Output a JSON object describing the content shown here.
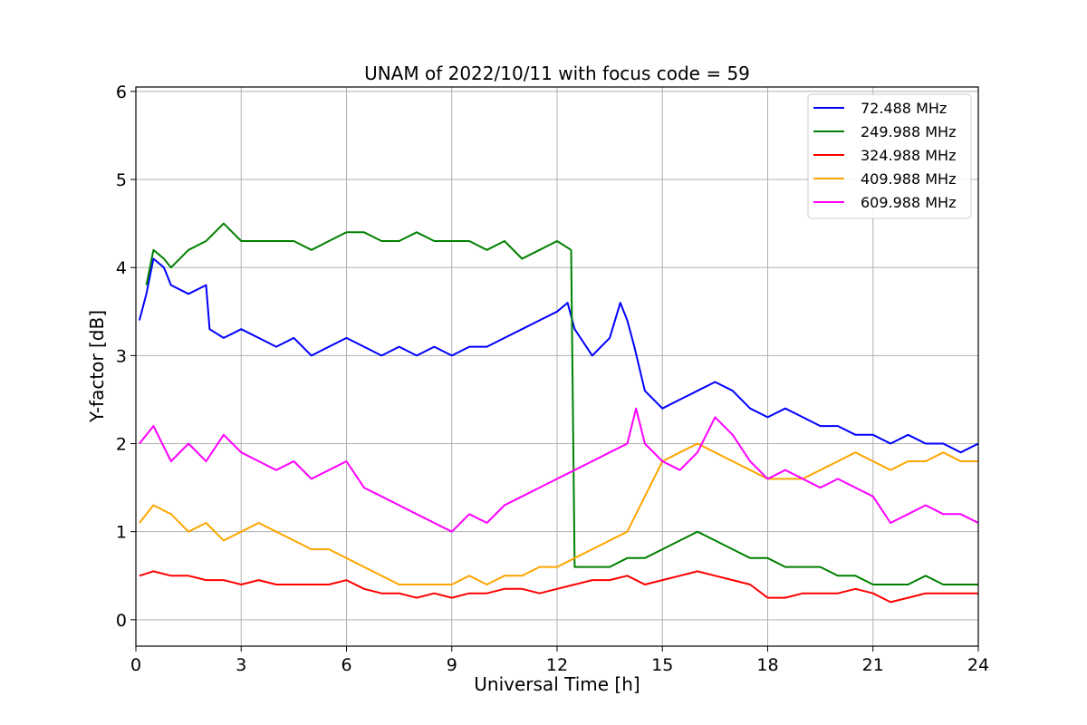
{
  "chart_data": {
    "type": "line",
    "title": "UNAM of 2022/10/11 with focus code = 59",
    "xlabel": "Universal Time [h]",
    "ylabel": "Y-factor [dB]",
    "xlim": [
      0,
      24
    ],
    "ylim": [
      -0.3,
      6.05
    ],
    "xticks": [
      0,
      3,
      6,
      9,
      12,
      15,
      18,
      21,
      24
    ],
    "yticks": [
      0,
      1,
      2,
      3,
      4,
      5,
      6
    ],
    "grid": true,
    "legend_position": "top-right",
    "series": [
      {
        "name": " 72.488 MHz",
        "color": "#0000ff",
        "x": [
          0.1,
          0.3,
          0.5,
          0.8,
          1.0,
          1.5,
          2.0,
          2.1,
          2.5,
          3.0,
          3.5,
          4.0,
          4.5,
          5.0,
          5.5,
          6.0,
          6.5,
          7.0,
          7.5,
          8.0,
          8.5,
          9.0,
          9.5,
          10.0,
          10.5,
          11.0,
          11.5,
          12.0,
          12.3,
          12.5,
          13.0,
          13.5,
          13.8,
          14.0,
          14.2,
          14.5,
          15.0,
          15.5,
          16.0,
          16.5,
          17.0,
          17.5,
          18.0,
          18.5,
          19.0,
          19.5,
          20.0,
          20.5,
          21.0,
          21.5,
          22.0,
          22.5,
          23.0,
          23.5,
          24.0
        ],
        "y": [
          3.4,
          3.7,
          4.1,
          4.0,
          3.8,
          3.7,
          3.8,
          3.3,
          3.2,
          3.3,
          3.2,
          3.1,
          3.2,
          3.0,
          3.1,
          3.2,
          3.1,
          3.0,
          3.1,
          3.0,
          3.1,
          3.0,
          3.1,
          3.1,
          3.2,
          3.3,
          3.4,
          3.5,
          3.6,
          3.3,
          3.0,
          3.2,
          3.6,
          3.4,
          3.1,
          2.6,
          2.4,
          2.5,
          2.6,
          2.7,
          2.6,
          2.4,
          2.3,
          2.4,
          2.3,
          2.2,
          2.2,
          2.1,
          2.1,
          2.0,
          2.1,
          2.0,
          2.0,
          1.9,
          2.0
        ]
      },
      {
        "name": "249.988 MHz",
        "color": "#008000",
        "x": [
          0.3,
          0.5,
          0.8,
          1.0,
          1.5,
          2.0,
          2.5,
          3.0,
          3.5,
          4.0,
          4.5,
          5.0,
          5.5,
          6.0,
          6.5,
          7.0,
          7.5,
          8.0,
          8.5,
          9.0,
          9.5,
          10.0,
          10.5,
          11.0,
          11.5,
          12.0,
          12.4,
          12.5,
          13.0,
          13.5,
          14.0,
          14.5,
          15.0,
          15.5,
          16.0,
          16.5,
          17.0,
          17.5,
          18.0,
          18.5,
          19.0,
          19.5,
          20.0,
          20.5,
          21.0,
          21.5,
          22.0,
          22.5,
          23.0,
          23.5,
          24.0
        ],
        "y": [
          3.8,
          4.2,
          4.1,
          4.0,
          4.2,
          4.3,
          4.5,
          4.3,
          4.3,
          4.3,
          4.3,
          4.2,
          4.3,
          4.4,
          4.4,
          4.3,
          4.3,
          4.4,
          4.3,
          4.3,
          4.3,
          4.2,
          4.3,
          4.1,
          4.2,
          4.3,
          4.2,
          0.6,
          0.6,
          0.6,
          0.7,
          0.7,
          0.8,
          0.9,
          1.0,
          0.9,
          0.8,
          0.7,
          0.7,
          0.6,
          0.6,
          0.6,
          0.5,
          0.5,
          0.4,
          0.4,
          0.4,
          0.5,
          0.4,
          0.4,
          0.4
        ]
      },
      {
        "name": "324.988 MHz",
        "color": "#ff0000",
        "x": [
          0.1,
          0.5,
          1.0,
          1.5,
          2.0,
          2.5,
          3.0,
          3.5,
          4.0,
          4.5,
          5.0,
          5.5,
          6.0,
          6.5,
          7.0,
          7.5,
          8.0,
          8.5,
          9.0,
          9.5,
          10.0,
          10.5,
          11.0,
          11.5,
          12.0,
          12.5,
          13.0,
          13.5,
          14.0,
          14.5,
          15.0,
          15.5,
          16.0,
          16.5,
          17.0,
          17.5,
          18.0,
          18.5,
          19.0,
          19.5,
          20.0,
          20.5,
          21.0,
          21.5,
          22.0,
          22.5,
          23.0,
          23.5,
          24.0
        ],
        "y": [
          0.5,
          0.55,
          0.5,
          0.5,
          0.45,
          0.45,
          0.4,
          0.45,
          0.4,
          0.4,
          0.4,
          0.4,
          0.45,
          0.35,
          0.3,
          0.3,
          0.25,
          0.3,
          0.25,
          0.3,
          0.3,
          0.35,
          0.35,
          0.3,
          0.35,
          0.4,
          0.45,
          0.45,
          0.5,
          0.4,
          0.45,
          0.5,
          0.55,
          0.5,
          0.45,
          0.4,
          0.25,
          0.25,
          0.3,
          0.3,
          0.3,
          0.35,
          0.3,
          0.2,
          0.25,
          0.3,
          0.3,
          0.3,
          0.3
        ]
      },
      {
        "name": "409.988 MHz",
        "color": "#ffa500",
        "x": [
          0.1,
          0.5,
          1.0,
          1.5,
          2.0,
          2.5,
          3.0,
          3.5,
          4.0,
          4.5,
          5.0,
          5.5,
          6.0,
          6.5,
          7.0,
          7.5,
          8.0,
          8.5,
          9.0,
          9.5,
          10.0,
          10.5,
          11.0,
          11.5,
          12.0,
          12.5,
          13.0,
          13.5,
          14.0,
          14.5,
          15.0,
          15.5,
          16.0,
          16.5,
          17.0,
          17.5,
          18.0,
          18.5,
          19.0,
          19.5,
          20.0,
          20.5,
          21.0,
          21.5,
          22.0,
          22.5,
          23.0,
          23.5,
          24.0
        ],
        "y": [
          1.1,
          1.3,
          1.2,
          1.0,
          1.1,
          0.9,
          1.0,
          1.1,
          1.0,
          0.9,
          0.8,
          0.8,
          0.7,
          0.6,
          0.5,
          0.4,
          0.4,
          0.4,
          0.4,
          0.5,
          0.4,
          0.5,
          0.5,
          0.6,
          0.6,
          0.7,
          0.8,
          0.9,
          1.0,
          1.4,
          1.8,
          1.9,
          2.0,
          1.9,
          1.8,
          1.7,
          1.6,
          1.6,
          1.6,
          1.7,
          1.8,
          1.9,
          1.8,
          1.7,
          1.8,
          1.8,
          1.9,
          1.8,
          1.8
        ]
      },
      {
        "name": "609.988 MHz",
        "color": "#ff00ff",
        "x": [
          0.1,
          0.5,
          1.0,
          1.5,
          2.0,
          2.5,
          3.0,
          3.5,
          4.0,
          4.5,
          5.0,
          5.5,
          6.0,
          6.5,
          7.0,
          7.5,
          8.0,
          8.5,
          9.0,
          9.5,
          10.0,
          10.5,
          11.0,
          11.5,
          12.0,
          12.5,
          13.0,
          13.5,
          14.0,
          14.25,
          14.5,
          15.0,
          15.5,
          16.0,
          16.5,
          17.0,
          17.5,
          18.0,
          18.5,
          19.0,
          19.5,
          20.0,
          20.5,
          21.0,
          21.5,
          22.0,
          22.5,
          23.0,
          23.5,
          24.0
        ],
        "y": [
          2.0,
          2.2,
          1.8,
          2.0,
          1.8,
          2.1,
          1.9,
          1.8,
          1.7,
          1.8,
          1.6,
          1.7,
          1.8,
          1.5,
          1.4,
          1.3,
          1.2,
          1.1,
          1.0,
          1.2,
          1.1,
          1.3,
          1.4,
          1.5,
          1.6,
          1.7,
          1.8,
          1.9,
          2.0,
          2.4,
          2.0,
          1.8,
          1.7,
          1.9,
          2.3,
          2.1,
          1.8,
          1.6,
          1.7,
          1.6,
          1.5,
          1.6,
          1.5,
          1.4,
          1.1,
          1.2,
          1.3,
          1.2,
          1.2,
          1.1
        ]
      }
    ]
  }
}
